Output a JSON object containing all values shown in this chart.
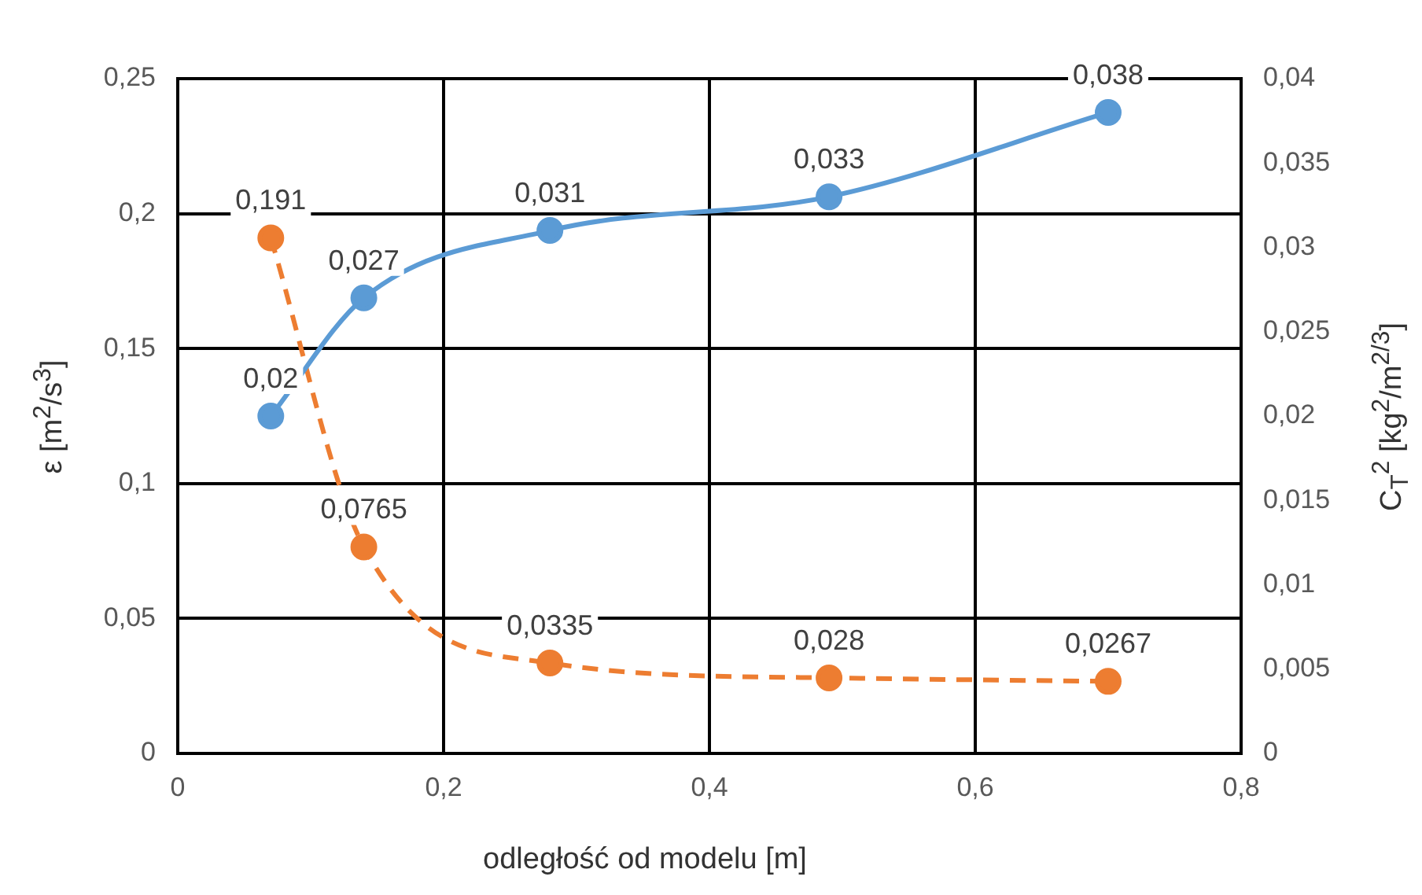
{
  "chart_data": {
    "type": "line",
    "xlabel": "odległość od modelu [m]",
    "ylabel": "ε [m$^{2}$/s$^{3}$]",
    "y2label": "C$_{T}$$^{2}$ [kg$^{2}$/m$^{2/3}$]",
    "x": [
      0.07,
      0.14,
      0.28,
      0.49,
      0.7
    ],
    "series": [
      {
        "color": "#5b9bd5",
        "axis": "y2",
        "line_style": "solid",
        "values": [
          0.02,
          0.027,
          0.031,
          0.033,
          0.038
        ],
        "value_labels": [
          "0,02",
          "0,027",
          "0,031",
          "0,033",
          "0,038"
        ]
      },
      {
        "color": "#ed7d31",
        "axis": "y",
        "line_style": "dashed",
        "values": [
          0.191,
          0.0765,
          0.0335,
          0.028,
          0.0267
        ],
        "value_labels": [
          "0,191",
          "0,0765",
          "0,0335",
          "0,028",
          "0,0267"
        ]
      }
    ],
    "xlim": [
      0,
      0.8
    ],
    "xticks": [
      0,
      {
        "value": 0.2,
        "label": "0,2"
      },
      {
        "value": 0.4,
        "label": "0,4"
      },
      {
        "value": 0.6,
        "label": "0,6"
      },
      {
        "value": 0.8,
        "label": "0,8"
      }
    ],
    "ylim": [
      0,
      0.25
    ],
    "yticks": [
      0,
      {
        "value": 0.05,
        "label": "0,05"
      },
      {
        "value": 0.1,
        "label": "0,1"
      },
      {
        "value": 0.15,
        "label": "0,15"
      },
      {
        "value": 0.2,
        "label": "0,2"
      },
      {
        "value": 0.25,
        "label": "0,25"
      }
    ],
    "y2lim": [
      0,
      0.04
    ],
    "y2ticks": [
      0,
      {
        "value": 0.005,
        "label": "0,005"
      },
      {
        "value": 0.01,
        "label": "0,01"
      },
      {
        "value": 0.015,
        "label": "0,015"
      },
      {
        "value": 0.02,
        "label": "0,02"
      },
      {
        "value": 0.025,
        "label": "0,025"
      },
      {
        "value": 0.03,
        "label": "0,03"
      },
      {
        "value": 0.035,
        "label": "0,035"
      },
      {
        "value": 0.04,
        "label": "0,04"
      }
    ],
    "grid": true,
    "legend": false,
    "marker": "circle"
  }
}
